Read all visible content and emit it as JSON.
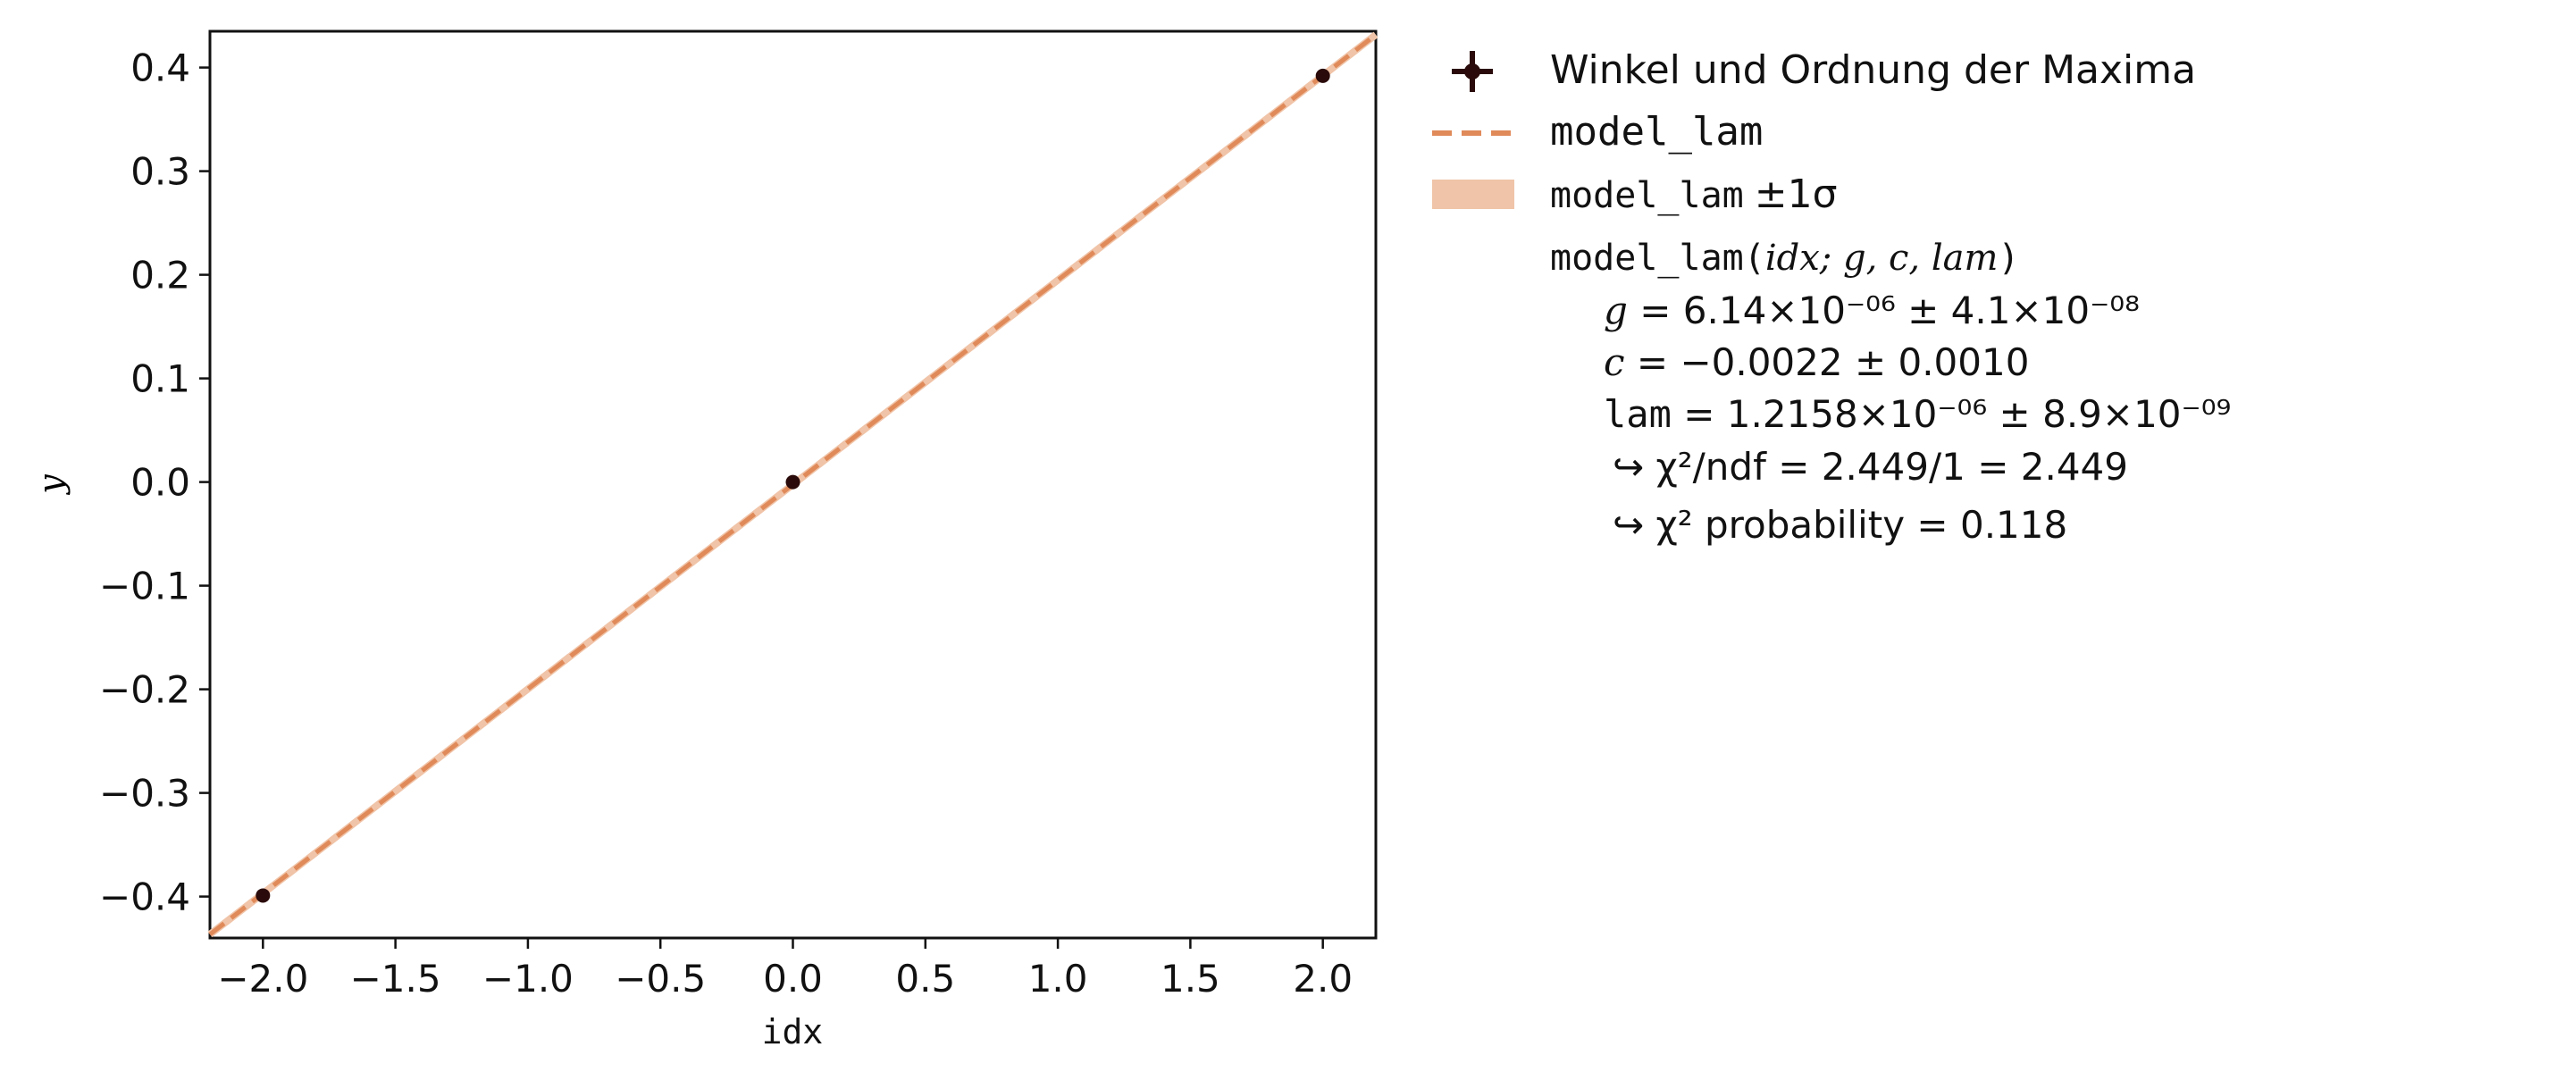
{
  "chart_data": {
    "type": "scatter",
    "xlabel": "idx",
    "ylabel": "y",
    "xlim": [
      -2.2,
      2.2
    ],
    "ylim": [
      -0.44,
      0.435
    ],
    "xticks": [
      -2.0,
      -1.5,
      -1.0,
      -0.5,
      0.0,
      0.5,
      1.0,
      1.5,
      2.0
    ],
    "xtick_labels": [
      "−2.0",
      "−1.5",
      "−1.0",
      "−0.5",
      "0.0",
      "0.5",
      "1.0",
      "1.5",
      "2.0"
    ],
    "yticks": [
      -0.4,
      -0.3,
      -0.2,
      -0.1,
      0.0,
      0.1,
      0.2,
      0.3,
      0.4
    ],
    "ytick_labels": [
      "−0.4",
      "−0.3",
      "−0.2",
      "−0.1",
      "0.0",
      "0.1",
      "0.2",
      "0.3",
      "0.4"
    ],
    "grid": false,
    "legend_position": "outside-right",
    "series": [
      {
        "name": "Winkel und Ordnung der Maxima",
        "kind": "data",
        "x": [
          -2.0,
          0.0,
          2.0
        ],
        "y": [
          -0.399,
          0.0,
          0.392
        ],
        "color": "#2a0a0a"
      },
      {
        "name": "model_lam",
        "kind": "model",
        "line": {
          "x": [
            -2.2,
            2.2
          ],
          "y": [
            -0.4365,
            0.4317
          ]
        },
        "color": "#e08a5a",
        "style": "dashed"
      }
    ],
    "legend": {
      "data_label": "Winkel und Ordnung der Maxima",
      "model_label": "model_lam",
      "band_label_prefix": "model_lam",
      "band_label_suffix": "±1σ",
      "band_color": "#f0c4a8",
      "fit_header_prefix": "model_lam(",
      "fit_header_args": "idx; g, c, lam",
      "fit_header_suffix": ")",
      "params": [
        {
          "name": "g",
          "value": "6.14×10⁻⁰⁶ ± 4.1×10⁻⁰⁸"
        },
        {
          "name": "c",
          "value": "−0.0022 ± 0.0010"
        },
        {
          "name": "lam",
          "value": "1.2158×10⁻⁰⁶ ± 8.9×10⁻⁰⁹"
        }
      ],
      "chi2_ndf": "↪ χ²/ndf = 2.449/1 = 2.449",
      "chi2_prob": "↪ χ² probability = 0.118"
    }
  }
}
